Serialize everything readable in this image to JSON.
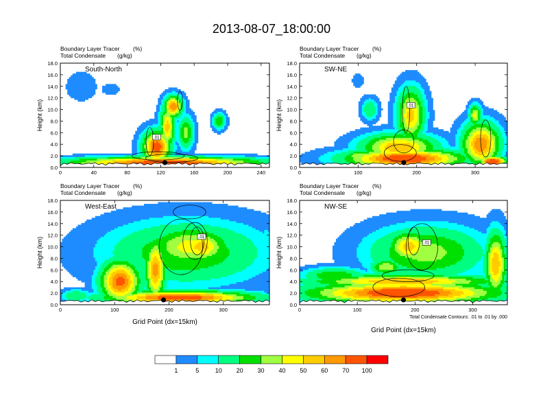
{
  "title": "2013-08-07_18:00:00",
  "panel_header": {
    "line1_left": "Boundary Layer Tracer",
    "line1_right": "(%)",
    "line2_left": "Total Condensate",
    "line2_right": "(g/kg)"
  },
  "ylabel": "Height (km)",
  "xlabel": "Grid Point (dx=15km)",
  "contour_note": "Total Condensate Contours: .01 to .01 by .000",
  "contour_label": ".01",
  "colorbar": {
    "levels": [
      1,
      5,
      10,
      20,
      30,
      40,
      50,
      60,
      70,
      100
    ],
    "colors": [
      "#ffffff",
      "#1e8cff",
      "#00ffff",
      "#00ff80",
      "#00e000",
      "#a0ff40",
      "#ffff00",
      "#ffcc00",
      "#ff9900",
      "#ff5500",
      "#ff0000"
    ]
  },
  "chart_data": [
    {
      "type": "heatmap",
      "name": "South-North",
      "xlabel": "",
      "ylabel": "Height (km)",
      "xlim": [
        0,
        250
      ],
      "ylim": [
        0,
        18
      ],
      "xticks": [
        0,
        40,
        80,
        120,
        160,
        200,
        240
      ],
      "yticks": [
        "0.0",
        "2.0",
        "4.0",
        "6.0",
        "8.0",
        "10.0",
        "12.0",
        "14.0",
        "16.0",
        "18.0"
      ],
      "marker_x": 125,
      "blobs": [
        {
          "x": 125,
          "y": 1.0,
          "rx": 125,
          "ry": 0.9,
          "v": 75
        },
        {
          "x": 125,
          "y": 0.6,
          "rx": 125,
          "ry": 0.5,
          "v": 95
        },
        {
          "x": 115,
          "y": 3.5,
          "rx": 18,
          "ry": 3,
          "v": 80
        },
        {
          "x": 135,
          "y": 10.5,
          "rx": 12,
          "ry": 2,
          "v": 70
        },
        {
          "x": 128,
          "y": 7,
          "rx": 10,
          "ry": 4,
          "v": 55
        },
        {
          "x": 150,
          "y": 6,
          "rx": 10,
          "ry": 3,
          "v": 35
        },
        {
          "x": 25,
          "y": 14,
          "rx": 18,
          "ry": 2.5,
          "v": 5
        },
        {
          "x": 60,
          "y": 13.5,
          "rx": 10,
          "ry": 1,
          "v": 5
        },
        {
          "x": 190,
          "y": 8,
          "rx": 8,
          "ry": 1.5,
          "v": 30
        },
        {
          "x": 60,
          "y": 1.2,
          "rx": 60,
          "ry": 0.6,
          "v": 30
        }
      ]
    },
    {
      "type": "heatmap",
      "name": "SW-NE",
      "xlabel": "",
      "ylabel": "Height (km)",
      "xlim": [
        0,
        355
      ],
      "ylim": [
        0,
        18
      ],
      "xticks": [
        0,
        100,
        200,
        300
      ],
      "yticks": [
        "0.0",
        "2.0",
        "4.0",
        "6.0",
        "8.0",
        "10.0",
        "12.0",
        "14.0",
        "16.0",
        "18.0"
      ],
      "marker_x": 178,
      "blobs": [
        {
          "x": 180,
          "y": 1.5,
          "rx": 110,
          "ry": 1.8,
          "v": 85
        },
        {
          "x": 170,
          "y": 3.5,
          "rx": 70,
          "ry": 2.5,
          "v": 60
        },
        {
          "x": 190,
          "y": 9,
          "rx": 25,
          "ry": 5,
          "v": 55
        },
        {
          "x": 310,
          "y": 4,
          "rx": 35,
          "ry": 4,
          "v": 70
        },
        {
          "x": 300,
          "y": 9,
          "rx": 12,
          "ry": 2,
          "v": 45
        },
        {
          "x": 120,
          "y": 10,
          "rx": 15,
          "ry": 2,
          "v": 20
        },
        {
          "x": 100,
          "y": 2,
          "rx": 25,
          "ry": 1,
          "v": 40
        },
        {
          "x": 100,
          "y": 15,
          "rx": 10,
          "ry": 1.2,
          "v": 5
        },
        {
          "x": 330,
          "y": 1,
          "rx": 25,
          "ry": 1,
          "v": 90
        }
      ]
    },
    {
      "type": "heatmap",
      "name": "West-East",
      "xlabel": "Grid Point (dx=15km)",
      "ylabel": "Height (km)",
      "xlim": [
        0,
        385
      ],
      "ylim": [
        0,
        18
      ],
      "xticks": [
        0,
        100,
        200,
        300
      ],
      "yticks": [
        "0.0",
        "2.0",
        "4.0",
        "6.0",
        "8.0",
        "10.0",
        "12.0",
        "14.0",
        "16.0",
        "18.0"
      ],
      "marker_x": 190,
      "blobs": [
        {
          "x": 230,
          "y": 9,
          "rx": 160,
          "ry": 6,
          "v": 30
        },
        {
          "x": 240,
          "y": 10,
          "rx": 90,
          "ry": 4,
          "v": 45
        },
        {
          "x": 260,
          "y": 10,
          "rx": 50,
          "ry": 3,
          "v": 55
        },
        {
          "x": 230,
          "y": 15,
          "rx": 120,
          "ry": 1.5,
          "v": 5
        },
        {
          "x": 220,
          "y": 1.2,
          "rx": 150,
          "ry": 1.3,
          "v": 80
        },
        {
          "x": 110,
          "y": 4,
          "rx": 40,
          "ry": 4,
          "v": 75
        },
        {
          "x": 175,
          "y": 6,
          "rx": 20,
          "ry": 6,
          "v": 65
        },
        {
          "x": 30,
          "y": 1.5,
          "rx": 30,
          "ry": 1.2,
          "v": 20
        },
        {
          "x": 380,
          "y": 11,
          "rx": 10,
          "ry": 3,
          "v": 10
        }
      ]
    },
    {
      "type": "heatmap",
      "name": "NW-SE",
      "xlabel": "Grid Point (dx=15km)",
      "ylabel": "Height (km)",
      "xlim": [
        0,
        360
      ],
      "ylim": [
        0,
        18
      ],
      "xticks": [
        0,
        100,
        200,
        300
      ],
      "yticks": [
        "0.0",
        "2.0",
        "4.0",
        "6.0",
        "8.0",
        "10.0",
        "12.0",
        "14.0",
        "16.0",
        "18.0"
      ],
      "marker_x": 180,
      "blobs": [
        {
          "x": 180,
          "y": 2,
          "rx": 180,
          "ry": 2,
          "v": 85
        },
        {
          "x": 180,
          "y": 4,
          "rx": 180,
          "ry": 1.3,
          "v": 60
        },
        {
          "x": 220,
          "y": 9,
          "rx": 110,
          "ry": 5,
          "v": 35
        },
        {
          "x": 190,
          "y": 10,
          "rx": 40,
          "ry": 3,
          "v": 55
        },
        {
          "x": 340,
          "y": 7,
          "rx": 20,
          "ry": 6,
          "v": 60
        },
        {
          "x": 260,
          "y": 13.5,
          "rx": 80,
          "ry": 1.5,
          "v": 5
        },
        {
          "x": 60,
          "y": 5,
          "rx": 60,
          "ry": 1.5,
          "v": 30
        },
        {
          "x": 150,
          "y": 6.5,
          "rx": 30,
          "ry": 1.5,
          "v": 40
        }
      ]
    }
  ]
}
